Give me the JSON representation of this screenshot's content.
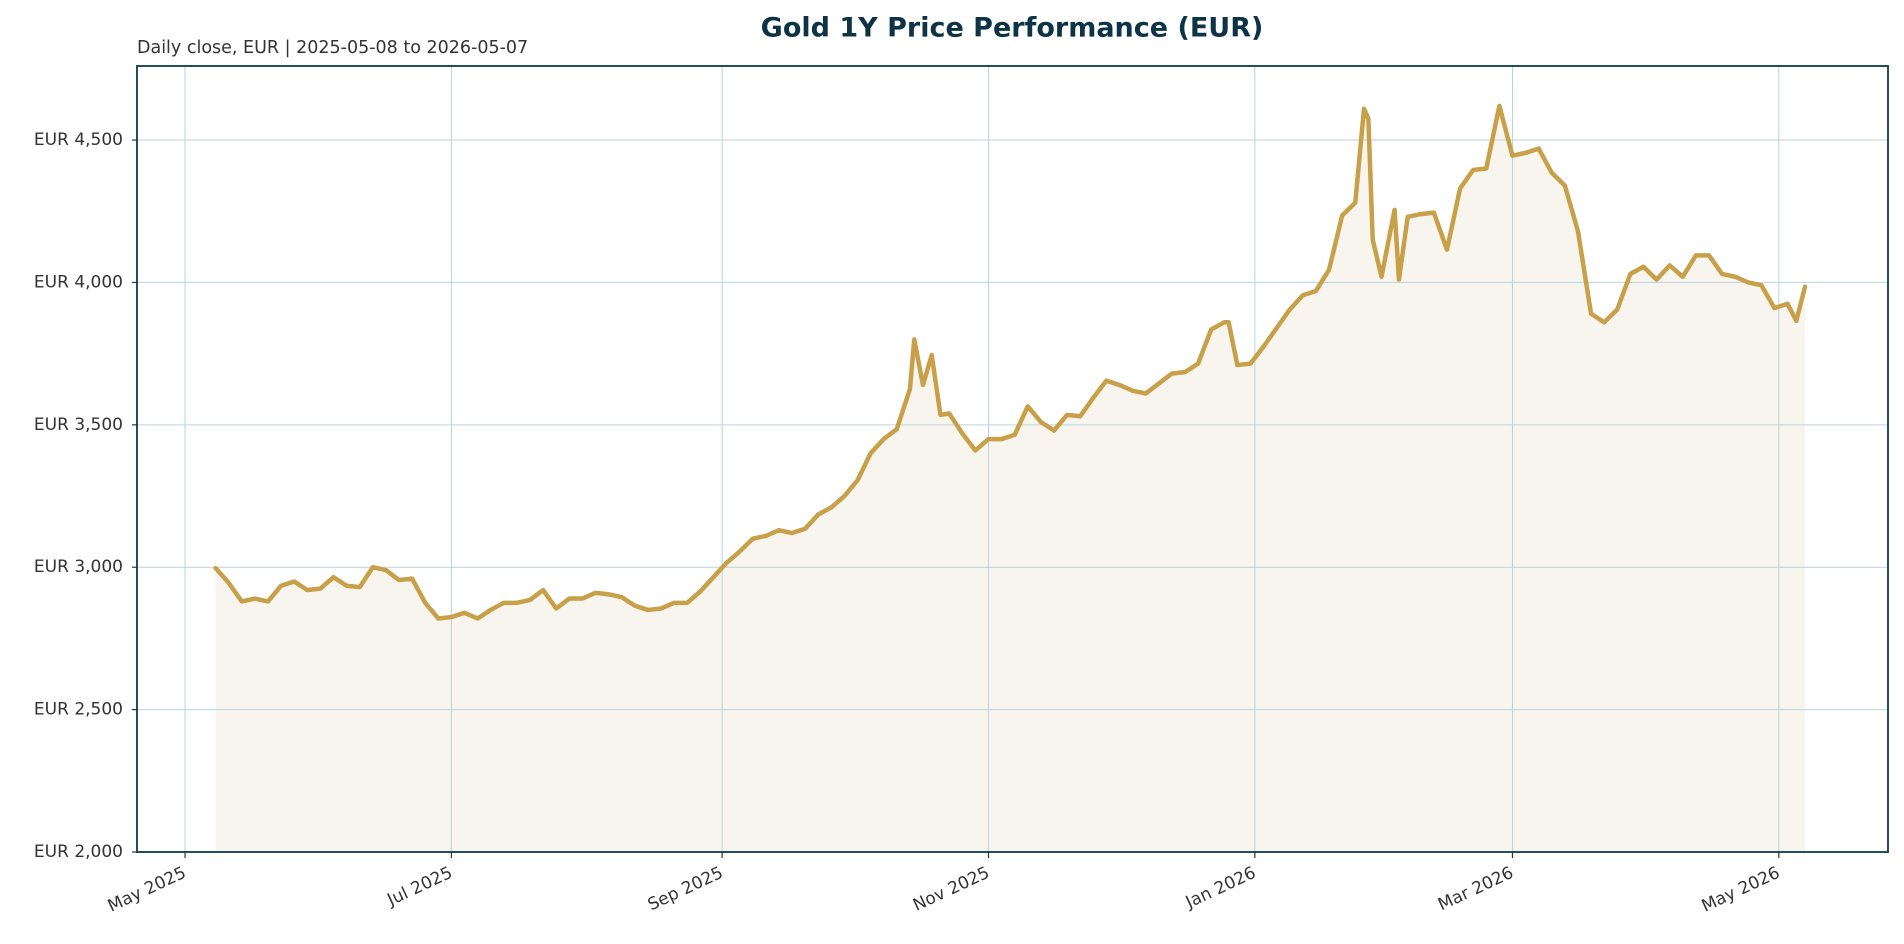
{
  "chart_data": {
    "type": "line",
    "title": "Gold 1Y Price Performance (EUR)",
    "subtitle": "Daily close, EUR | 2025-05-08 to 2026-05-07",
    "color": "#c8a04a",
    "fill_color": "#f8f4ee",
    "grid": true,
    "x": [
      "2025-05-08",
      "2025-05-11",
      "2025-05-14",
      "2025-05-17",
      "2025-05-20",
      "2025-05-23",
      "2025-05-26",
      "2025-05-29",
      "2025-06-01",
      "2025-06-04",
      "2025-06-07",
      "2025-06-10",
      "2025-06-13",
      "2025-06-16",
      "2025-06-19",
      "2025-06-22",
      "2025-06-25",
      "2025-06-28",
      "2025-07-01",
      "2025-07-04",
      "2025-07-07",
      "2025-07-10",
      "2025-07-13",
      "2025-07-16",
      "2025-07-19",
      "2025-07-22",
      "2025-07-25",
      "2025-07-28",
      "2025-07-31",
      "2025-08-03",
      "2025-08-06",
      "2025-08-09",
      "2025-08-12",
      "2025-08-15",
      "2025-08-18",
      "2025-08-21",
      "2025-08-24",
      "2025-08-27",
      "2025-08-30",
      "2025-09-02",
      "2025-09-05",
      "2025-09-08",
      "2025-09-11",
      "2025-09-14",
      "2025-09-17",
      "2025-09-20",
      "2025-09-23",
      "2025-09-26",
      "2025-09-29",
      "2025-10-02",
      "2025-10-05",
      "2025-10-08",
      "2025-10-11",
      "2025-10-14",
      "2025-10-15",
      "2025-10-17",
      "2025-10-19",
      "2025-10-21",
      "2025-10-23",
      "2025-10-26",
      "2025-10-29",
      "2025-11-01",
      "2025-11-04",
      "2025-11-07",
      "2025-11-10",
      "2025-11-13",
      "2025-11-16",
      "2025-11-19",
      "2025-11-22",
      "2025-11-25",
      "2025-11-28",
      "2025-12-01",
      "2025-12-04",
      "2025-12-07",
      "2025-12-10",
      "2025-12-13",
      "2025-12-16",
      "2025-12-19",
      "2025-12-22",
      "2025-12-25",
      "2025-12-26",
      "2025-12-28",
      "2025-12-31",
      "2026-01-03",
      "2026-01-06",
      "2026-01-09",
      "2026-01-12",
      "2026-01-15",
      "2026-01-18",
      "2026-01-21",
      "2026-01-24",
      "2026-01-26",
      "2026-01-27",
      "2026-01-28",
      "2026-01-30",
      "2026-02-02",
      "2026-02-03",
      "2026-02-05",
      "2026-02-08",
      "2026-02-11",
      "2026-02-14",
      "2026-02-17",
      "2026-02-20",
      "2026-02-23",
      "2026-02-26",
      "2026-03-01",
      "2026-03-04",
      "2026-03-07",
      "2026-03-10",
      "2026-03-13",
      "2026-03-16",
      "2026-03-19",
      "2026-03-22",
      "2026-03-25",
      "2026-03-28",
      "2026-03-31",
      "2026-04-03",
      "2026-04-06",
      "2026-04-09",
      "2026-04-12",
      "2026-04-15",
      "2026-04-18",
      "2026-04-21",
      "2026-04-24",
      "2026-04-27",
      "2026-04-30",
      "2026-05-03",
      "2026-05-05",
      "2026-05-07"
    ],
    "values": [
      2997,
      2945,
      2880,
      2890,
      2880,
      2935,
      2950,
      2920,
      2925,
      2965,
      2935,
      2930,
      3000,
      2990,
      2955,
      2960,
      2875,
      2820,
      2825,
      2840,
      2820,
      2850,
      2875,
      2875,
      2885,
      2920,
      2855,
      2890,
      2890,
      2910,
      2905,
      2895,
      2865,
      2850,
      2855,
      2875,
      2875,
      2915,
      2965,
      3015,
      3055,
      3100,
      3110,
      3130,
      3120,
      3135,
      3185,
      3210,
      3250,
      3305,
      3400,
      3450,
      3485,
      3625,
      3800,
      3640,
      3745,
      3535,
      3540,
      3470,
      3410,
      3450,
      3450,
      3465,
      3565,
      3510,
      3480,
      3535,
      3530,
      3595,
      3655,
      3640,
      3620,
      3610,
      3645,
      3680,
      3685,
      3715,
      3835,
      3860,
      3860,
      3710,
      3715,
      3775,
      3840,
      3905,
      3955,
      3970,
      4045,
      4235,
      4280,
      4610,
      4575,
      4150,
      4020,
      4255,
      4010,
      4230,
      4240,
      4245,
      4115,
      4330,
      4395,
      4400,
      4620,
      4445,
      4455,
      4470,
      4385,
      4340,
      4180,
      3890,
      3860,
      3905,
      4030,
      4055,
      4010,
      4060,
      4020,
      4095,
      4095,
      4030,
      4020,
      4000,
      3990,
      3910,
      3925,
      3865,
      3985
    ],
    "xlim": [
      "2025-04-20",
      "2026-05-26"
    ],
    "xticks": [
      {
        "value": "2025-05-01",
        "label": "May 2025"
      },
      {
        "value": "2025-07-01",
        "label": "Jul 2025"
      },
      {
        "value": "2025-09-01",
        "label": "Sep 2025"
      },
      {
        "value": "2025-11-01",
        "label": "Nov 2025"
      },
      {
        "value": "2026-01-01",
        "label": "Jan 2026"
      },
      {
        "value": "2026-03-01",
        "label": "Mar 2026"
      },
      {
        "value": "2026-05-01",
        "label": "May 2026"
      }
    ],
    "ylim": [
      2000,
      4760
    ],
    "yticks": [
      {
        "value": 2000,
        "label": "EUR 2,000"
      },
      {
        "value": 2500,
        "label": "EUR 2,500"
      },
      {
        "value": 3000,
        "label": "EUR 3,000"
      },
      {
        "value": 3500,
        "label": "EUR 3,500"
      },
      {
        "value": 4000,
        "label": "EUR 4,000"
      },
      {
        "value": 4500,
        "label": "EUR 4,500"
      }
    ]
  }
}
